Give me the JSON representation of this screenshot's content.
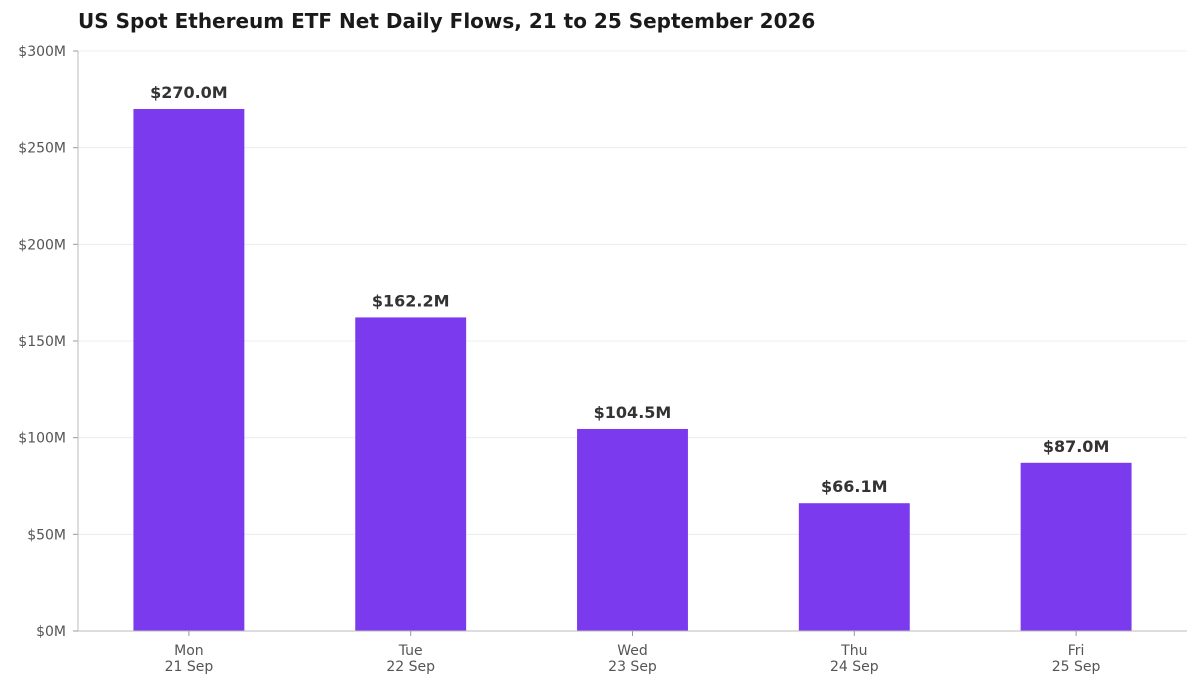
{
  "chart_data": {
    "type": "bar",
    "title": "US Spot Ethereum ETF Net Daily Flows, 21 to 25 September 2026",
    "xlabel": "",
    "ylabel": "",
    "categories": [
      [
        "Mon",
        "21 Sep"
      ],
      [
        "Tue",
        "22 Sep"
      ],
      [
        "Wed",
        "23 Sep"
      ],
      [
        "Thu",
        "24 Sep"
      ],
      [
        "Fri",
        "25 Sep"
      ]
    ],
    "values": [
      270.0,
      162.2,
      104.5,
      66.1,
      87.0
    ],
    "value_labels": [
      "$270.0M",
      "$162.2M",
      "$104.5M",
      "$66.1M",
      "$87.0M"
    ],
    "ylim": [
      0,
      300
    ],
    "yticks": [
      0,
      50,
      100,
      150,
      200,
      250,
      300
    ],
    "ytick_labels": [
      "$0M",
      "$50M",
      "$100M",
      "$150M",
      "$200M",
      "$250M",
      "$300M"
    ],
    "grid": true,
    "legend": "none",
    "colors": {
      "bar": "#7b3aed"
    }
  }
}
